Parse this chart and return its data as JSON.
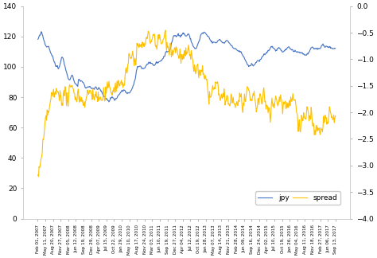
{
  "left_axis": {
    "ylim": [
      0,
      140
    ],
    "yticks": [
      0,
      20,
      40,
      60,
      80,
      100,
      120,
      140
    ]
  },
  "right_axis": {
    "ylim": [
      -4.0,
      0.0
    ],
    "yticks": [
      0.0,
      -0.5,
      -1.0,
      -1.5,
      -2.0,
      -2.5,
      -3.0,
      -3.5,
      -4.0
    ]
  },
  "jpy_color": "#4472C4",
  "spread_color": "#FFC000",
  "legend_labels": [
    "jpy",
    "spread"
  ],
  "background_color": "#ffffff",
  "line_width": 0.8,
  "jpy_smooth": [
    118,
    120,
    121,
    123,
    121,
    118,
    116,
    114,
    113,
    114,
    112,
    110,
    108,
    107,
    104,
    102,
    100,
    101,
    99,
    100,
    103,
    107,
    106,
    103,
    100,
    97,
    94,
    92,
    91,
    93,
    95,
    93,
    90,
    89,
    88,
    87,
    92,
    91,
    91,
    90,
    90,
    88,
    86,
    86,
    87,
    87,
    87,
    86,
    86,
    86,
    85,
    87,
    86,
    85,
    86,
    85,
    84,
    82,
    81,
    80,
    79,
    79,
    78,
    77,
    79,
    80,
    80,
    79,
    78,
    79,
    80,
    81,
    82,
    83,
    84,
    84,
    85,
    84,
    83,
    82,
    83,
    83,
    84,
    85,
    87,
    89,
    92,
    97,
    100,
    100,
    101,
    100,
    99,
    99,
    99,
    100,
    101,
    102,
    103,
    102,
    102,
    102,
    101,
    101,
    102,
    103,
    103,
    103,
    104,
    104,
    105,
    106,
    107,
    110,
    110,
    110,
    110,
    112,
    115,
    118,
    120,
    121,
    120,
    120,
    122,
    121,
    120,
    121,
    122,
    122,
    121,
    120,
    121,
    122,
    120,
    118,
    116,
    114,
    113,
    112,
    112,
    114,
    116,
    118,
    121,
    122,
    122,
    123,
    122,
    121,
    120,
    120,
    118,
    117,
    116,
    116,
    116,
    116,
    116,
    117,
    118,
    118,
    117,
    116,
    116,
    116,
    117,
    117,
    117,
    116,
    115,
    114,
    113,
    112,
    112,
    112,
    111,
    110,
    110,
    110,
    109,
    108,
    107,
    105,
    103,
    102,
    101,
    100,
    101,
    102,
    101,
    101,
    102,
    103,
    104,
    104,
    104,
    105,
    106,
    107,
    108,
    108,
    109,
    110,
    111,
    112,
    113,
    113,
    113,
    112,
    111,
    111,
    112,
    113,
    112,
    111,
    110,
    110,
    111,
    111,
    112,
    113,
    113,
    112,
    112,
    111,
    110,
    110,
    110,
    110,
    110,
    110,
    109,
    109,
    109,
    108,
    108,
    108,
    108,
    109,
    110,
    112,
    113,
    113,
    112,
    112,
    112,
    112,
    112,
    112,
    113,
    114,
    115,
    114,
    113,
    114,
    113,
    113,
    113,
    113,
    112,
    112,
    112,
    112
  ],
  "spread_smooth": [
    -3.2,
    -3.15,
    -3.05,
    -2.95,
    -2.8,
    -2.6,
    -2.4,
    -2.25,
    -2.1,
    -2.0,
    -1.9,
    -1.82,
    -1.78,
    -1.75,
    -1.72,
    -1.7,
    -1.68,
    -1.65,
    -1.63,
    -1.62,
    -1.62,
    -1.63,
    -1.65,
    -1.67,
    -1.7,
    -1.72,
    -1.73,
    -1.72,
    -1.7,
    -1.68,
    -1.65,
    -1.62,
    -1.6,
    -1.6,
    -1.62,
    -1.65,
    -1.68,
    -1.7,
    -1.72,
    -1.73,
    -1.74,
    -1.75,
    -1.75,
    -1.73,
    -1.7,
    -1.67,
    -1.63,
    -1.6,
    -1.6,
    -1.62,
    -1.65,
    -1.68,
    -1.72,
    -1.75,
    -1.77,
    -1.78,
    -1.78,
    -1.77,
    -1.75,
    -1.73,
    -1.7,
    -1.67,
    -1.63,
    -1.6,
    -1.57,
    -1.53,
    -1.5,
    -1.48,
    -1.47,
    -1.47,
    -1.48,
    -1.5,
    -1.5,
    -1.48,
    -1.45,
    -1.42,
    -1.38,
    -1.33,
    -1.27,
    -1.2,
    -1.13,
    -1.07,
    -1.02,
    -0.98,
    -0.95,
    -0.92,
    -0.88,
    -0.83,
    -0.82,
    -0.82,
    -0.8,
    -0.78,
    -0.75,
    -0.72,
    -0.7,
    -0.68,
    -0.67,
    -0.65,
    -0.63,
    -0.6,
    -0.57,
    -0.55,
    -0.55,
    -0.57,
    -0.6,
    -0.65,
    -0.68,
    -0.7,
    -0.7,
    -0.68,
    -0.65,
    -0.62,
    -0.6,
    -0.6,
    -0.62,
    -0.65,
    -0.68,
    -0.7,
    -0.72,
    -0.75,
    -0.78,
    -0.8,
    -0.82,
    -0.83,
    -0.85,
    -0.88,
    -0.9,
    -0.93,
    -0.95,
    -0.97,
    -0.98,
    -0.98,
    -0.97,
    -0.95,
    -0.95,
    -0.97,
    -1.0,
    -1.05,
    -1.1,
    -1.15,
    -1.2,
    -1.23,
    -1.25,
    -1.27,
    -1.3,
    -1.33,
    -1.37,
    -1.42,
    -1.47,
    -1.52,
    -1.57,
    -1.62,
    -1.65,
    -1.65,
    -1.62,
    -1.58,
    -1.55,
    -1.55,
    -1.57,
    -1.6,
    -1.65,
    -1.7,
    -1.75,
    -1.8,
    -1.83,
    -1.85,
    -1.85,
    -1.83,
    -1.8,
    -1.78,
    -1.77,
    -1.78,
    -1.8,
    -1.83,
    -1.85,
    -1.85,
    -1.83,
    -1.8,
    -1.77,
    -1.75,
    -1.75,
    -1.77,
    -1.8,
    -1.83,
    -1.85,
    -1.83,
    -1.8,
    -1.77,
    -1.75,
    -1.73,
    -1.73,
    -1.75,
    -1.77,
    -1.8,
    -1.82,
    -1.83,
    -1.83,
    -1.82,
    -1.8,
    -1.78,
    -1.77,
    -1.78,
    -1.8,
    -1.83,
    -1.85,
    -1.87,
    -1.88,
    -1.88,
    -1.87,
    -1.85,
    -1.83,
    -1.8,
    -1.78,
    -1.77,
    -1.77,
    -1.78,
    -1.8,
    -1.82,
    -1.83,
    -1.83,
    -1.82,
    -1.8,
    -1.77,
    -1.73,
    -1.7,
    -1.7,
    -1.73,
    -1.8,
    -1.88,
    -1.97,
    -2.05,
    -2.12,
    -2.17,
    -2.18,
    -2.15,
    -2.1,
    -2.05,
    -2.0,
    -1.98,
    -2.0,
    -2.05,
    -2.1,
    -2.18,
    -2.25,
    -2.32,
    -2.37,
    -2.4,
    -2.42,
    -2.43,
    -2.4,
    -2.35,
    -2.3,
    -2.25,
    -2.2,
    -2.17,
    -2.17,
    -2.2,
    -2.2,
    -2.18,
    -2.15,
    -2.13,
    -2.15,
    -2.18,
    -2.22
  ],
  "x_tick_labels": [
    "Feb 01, 2007",
    "May 11, 2007",
    "Aug 20, 2007",
    "Nov 27, 2007",
    "Mar 05, 2008",
    "Jun 12, 2008",
    "Sep 19, 2008",
    "Dec 29, 2008",
    "Apr 07, 2009",
    "Jul 15, 2009",
    "Oct 22, 2009",
    "Jan 29, 2010",
    "May 10, 2010",
    "Aug 17, 2010",
    "Nov 24, 2010",
    "Mar 03, 2011",
    "Jun 10, 2011",
    "Sep 19, 2011",
    "Dec 27, 2011",
    "Apr 04, 2012",
    "Jul 12, 2012",
    "Oct 19, 2012",
    "Jan 28, 2013",
    "May 07, 2013",
    "Aug 14, 2013",
    "Nov 21, 2013",
    "Feb 28, 2014",
    "Jun 09, 2014",
    "Sep 16, 2014",
    "Dec 24, 2014",
    "Apr 02, 2015",
    "Jul 10, 2015",
    "Oct 19, 2015",
    "Jan 26, 2016",
    "May 04, 2016",
    "Aug 11, 2016",
    "Nov 18, 2016",
    "Feb 27, 2017",
    "Jun 06, 2017",
    "Sep 13, 2017"
  ],
  "noise_seed": 42,
  "jpy_noise_scale": 0.3,
  "spread_noise_scale": 0.08
}
